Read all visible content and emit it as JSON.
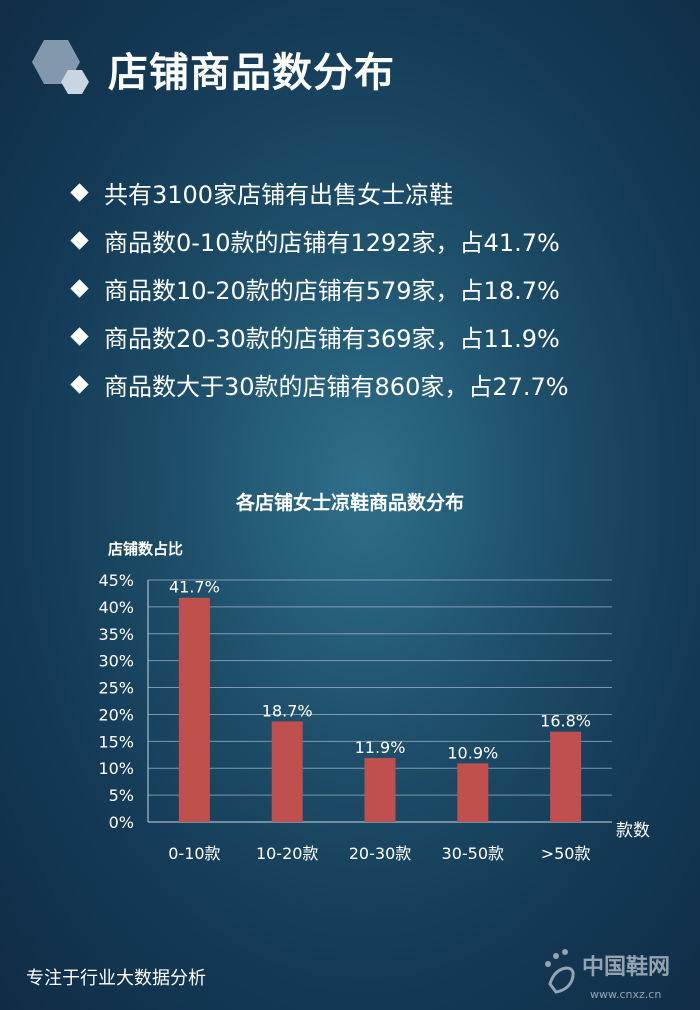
{
  "header": {
    "title": "店铺商品数分布"
  },
  "summary": {
    "items": [
      "共有3100家店铺有出售女士凉鞋",
      "商品数0-10款的店铺有1292家，占41.7%",
      "商品数10-20款的店铺有579家，占18.7%",
      "商品数20-30款的店铺有369家，占11.9%",
      "商品数大于30款的店铺有860家，占27.7%"
    ]
  },
  "chart_data": {
    "type": "bar",
    "title": "各店铺女士凉鞋商品数分布",
    "ylabel": "店铺数占比",
    "xlabel": "款数",
    "categories": [
      "0-10款",
      "10-20款",
      "20-30款",
      "30-50款",
      ">50款"
    ],
    "values": [
      41.7,
      18.7,
      11.9,
      10.9,
      16.8
    ],
    "data_labels": [
      "41.7%",
      "18.7%",
      "11.9%",
      "10.9%",
      "16.8%"
    ],
    "ylim": [
      0,
      45
    ],
    "yticks": [
      "0%",
      "5%",
      "10%",
      "15%",
      "20%",
      "25%",
      "30%",
      "35%",
      "40%",
      "45%"
    ],
    "grid": true,
    "bar_color": "#c0504d"
  },
  "footer": {
    "tagline": "专注于行业大数据分析"
  },
  "watermark": {
    "brand": "中国鞋网",
    "url": "www.cnxz.cn"
  }
}
